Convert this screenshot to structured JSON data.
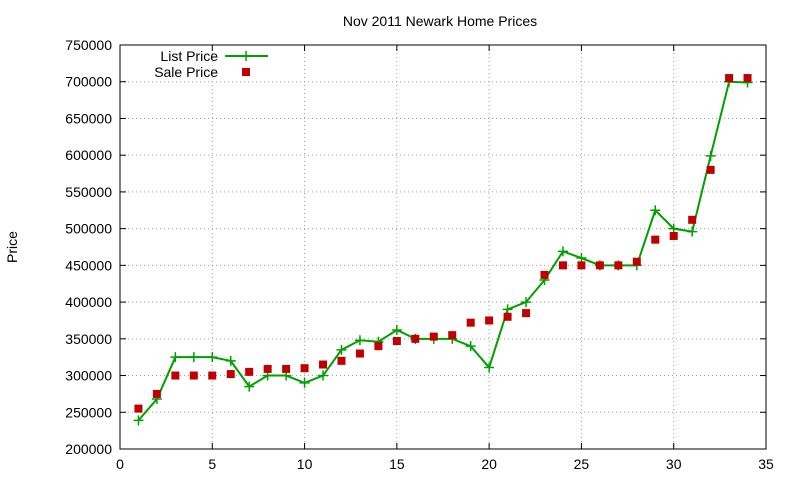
{
  "chart_data": {
    "type": "line",
    "title": "Nov 2011 Newark Home Prices",
    "xlabel": "",
    "ylabel": "Price",
    "xlim": [
      0,
      35
    ],
    "ylim": [
      200000,
      750000
    ],
    "x_ticks": [
      0,
      5,
      10,
      15,
      20,
      25,
      30,
      35
    ],
    "y_ticks": [
      200000,
      250000,
      300000,
      350000,
      400000,
      450000,
      500000,
      550000,
      600000,
      650000,
      700000,
      750000
    ],
    "grid": true,
    "legend_position": "top-left",
    "series": [
      {
        "name": "List Price",
        "style": "line-points",
        "color": "#00a000",
        "x": [
          1,
          2,
          3,
          4,
          5,
          6,
          7,
          8,
          9,
          10,
          11,
          12,
          13,
          14,
          15,
          16,
          17,
          18,
          19,
          20,
          21,
          22,
          23,
          24,
          25,
          26,
          27,
          28,
          29,
          30,
          31,
          32,
          33,
          34
        ],
        "y": [
          239000,
          268000,
          325000,
          325000,
          325000,
          320000,
          285000,
          300000,
          300000,
          290000,
          300000,
          335000,
          348000,
          346000,
          362000,
          350000,
          350000,
          350000,
          340000,
          311000,
          390000,
          400000,
          430000,
          469000,
          460000,
          450000,
          450000,
          450000,
          525000,
          500000,
          496000,
          599000,
          700000,
          699000
        ]
      },
      {
        "name": "Sale Price",
        "style": "points",
        "color": "#c00000",
        "x": [
          1,
          2,
          3,
          4,
          5,
          6,
          7,
          8,
          9,
          10,
          11,
          12,
          13,
          14,
          15,
          16,
          17,
          18,
          19,
          20,
          21,
          22,
          23,
          24,
          25,
          26,
          27,
          28,
          29,
          30,
          31,
          32,
          33,
          34
        ],
        "y": [
          255000,
          275000,
          300000,
          300000,
          300000,
          302000,
          305000,
          309000,
          309000,
          310000,
          315000,
          320000,
          330000,
          340000,
          347000,
          350000,
          353000,
          355000,
          372000,
          375000,
          380000,
          385000,
          437000,
          450000,
          450000,
          450000,
          450000,
          455000,
          485000,
          490000,
          512000,
          580000,
          705000,
          705000
        ]
      }
    ]
  }
}
